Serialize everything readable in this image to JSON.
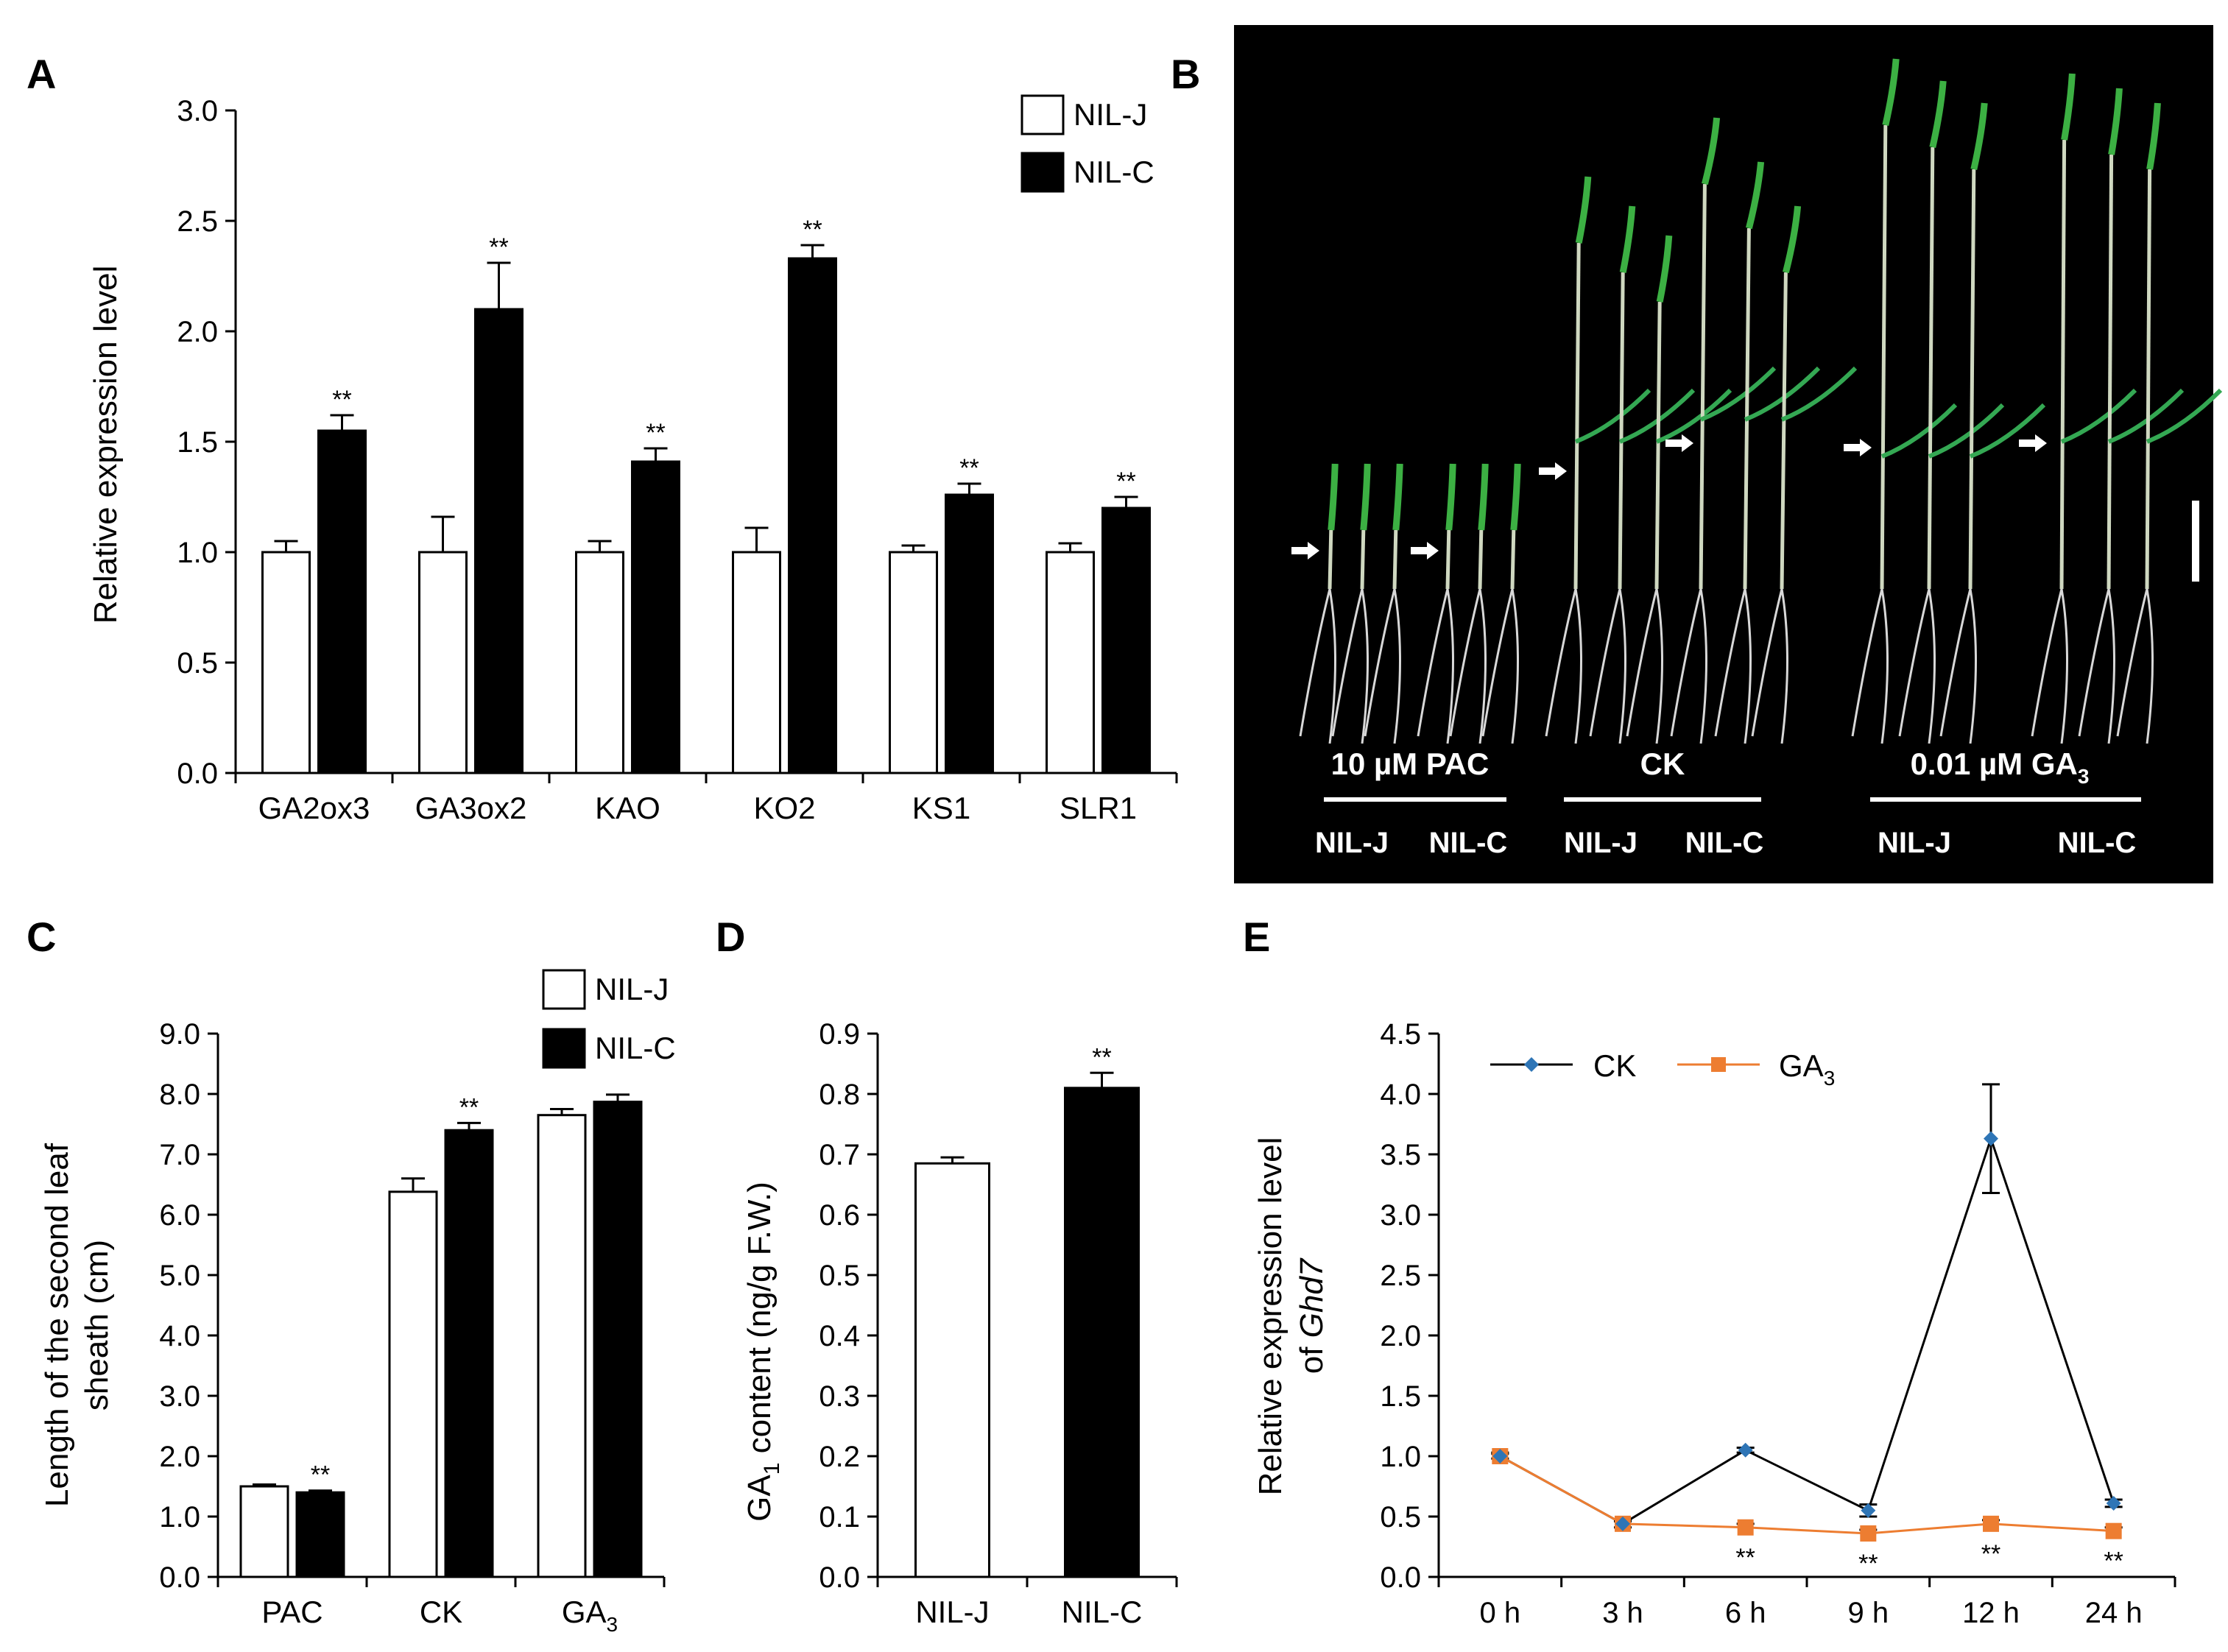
{
  "panel_letters": {
    "a": "A",
    "b": "B",
    "c": "C",
    "d": "D",
    "e": "E"
  },
  "superscripts": {
    "ga3_sub": "3",
    "ga1_sub": "1"
  },
  "colors": {
    "nil_j": "#ffffff",
    "nil_c": "#000000",
    "ck": "#2e75b6",
    "ga3": "#ed7d31",
    "photo_bg": "#000000"
  },
  "chart_data": [
    {
      "panel": "A",
      "type": "bar",
      "title": "",
      "xlabel": "",
      "ylabel": "Relative expression level",
      "ylim": [
        0,
        3.0
      ],
      "yticks": [
        "0.0",
        "0.5",
        "1.0",
        "1.5",
        "2.0",
        "2.5",
        "3.0"
      ],
      "categories": [
        "GA2ox3",
        "GA3ox2",
        "KAO",
        "KO2",
        "KS1",
        "SLR1"
      ],
      "legend_position": "top-right",
      "series": [
        {
          "name": "NIL-J",
          "values": [
            1.0,
            1.0,
            1.0,
            1.0,
            1.0,
            1.0
          ],
          "errors": [
            0.05,
            0.16,
            0.05,
            0.11,
            0.03,
            0.04
          ]
        },
        {
          "name": "NIL-C",
          "values": [
            1.55,
            2.1,
            1.41,
            2.33,
            1.26,
            1.2
          ],
          "errors": [
            0.07,
            0.21,
            0.06,
            0.06,
            0.05,
            0.05
          ]
        }
      ],
      "significance": [
        "**",
        "**",
        "**",
        "**",
        "**",
        "**"
      ]
    },
    {
      "panel": "C",
      "type": "bar",
      "title": "",
      "xlabel": "",
      "ylabel": "Length of the second leaf sheath (cm)",
      "ylabel_lines": [
        "Length of the second leaf",
        "sheath (cm)"
      ],
      "ylim": [
        0,
        9.0
      ],
      "yticks": [
        "0.0",
        "1.0",
        "2.0",
        "3.0",
        "4.0",
        "5.0",
        "6.0",
        "7.0",
        "8.0",
        "9.0"
      ],
      "categories": [
        "PAC",
        "CK",
        "GA"
      ],
      "legend_position": "top-right",
      "series": [
        {
          "name": "NIL-J",
          "values": [
            1.5,
            6.38,
            7.65
          ],
          "errors": [
            0.03,
            0.22,
            0.1
          ]
        },
        {
          "name": "NIL-C",
          "values": [
            1.4,
            7.4,
            7.87
          ],
          "errors": [
            0.03,
            0.12,
            0.12
          ]
        }
      ],
      "significance": [
        "**",
        "**",
        ""
      ]
    },
    {
      "panel": "D",
      "type": "bar",
      "title": "",
      "xlabel": "",
      "ylabel_main": "GA",
      "ylabel_rest": " content (ng/g F.W.)",
      "ylim": [
        0,
        0.9
      ],
      "yticks": [
        "0.0",
        "0.1",
        "0.2",
        "0.3",
        "0.4",
        "0.5",
        "0.6",
        "0.7",
        "0.8",
        "0.9"
      ],
      "categories": [
        "NIL-J",
        "NIL-C"
      ],
      "values": [
        0.685,
        0.81
      ],
      "errors": [
        0.01,
        0.025
      ],
      "significance": [
        "",
        "**"
      ]
    },
    {
      "panel": "E",
      "type": "line",
      "title": "",
      "xlabel": "",
      "ylabel_line1": "Relative expression level",
      "ylabel_line2_prefix": "of ",
      "ylabel_gene": "Ghd7",
      "ylim": [
        0,
        4.5
      ],
      "yticks": [
        "0.0",
        "0.5",
        "1.0",
        "1.5",
        "2.0",
        "2.5",
        "3.0",
        "3.5",
        "4.0",
        "4.5"
      ],
      "x": [
        "0 h",
        "3 h",
        "6 h",
        "9 h",
        "12 h",
        "24 h"
      ],
      "legend_position": "top-left",
      "series": [
        {
          "name": "CK",
          "values": [
            1.0,
            0.44,
            1.05,
            0.55,
            3.63,
            0.61
          ],
          "errors": [
            0.02,
            0.03,
            0.02,
            0.05,
            0.45,
            0.03
          ]
        },
        {
          "name": "GA",
          "name_sub": "3",
          "values": [
            1.0,
            0.44,
            0.41,
            0.36,
            0.44,
            0.38
          ],
          "errors": [
            0.03,
            0.02,
            0.03,
            0.03,
            0.03,
            0.03
          ]
        }
      ],
      "significance": [
        "",
        "",
        "**",
        "**",
        "**",
        "**"
      ]
    }
  ],
  "photo_b": {
    "treatments": [
      "10 µM PAC",
      "CK",
      "0.01 µM GA"
    ],
    "treatment_sub": "3",
    "genotypes": [
      "NIL-J",
      "NIL-C",
      "NIL-J",
      "NIL-C",
      "NIL-J",
      "NIL-C"
    ]
  }
}
